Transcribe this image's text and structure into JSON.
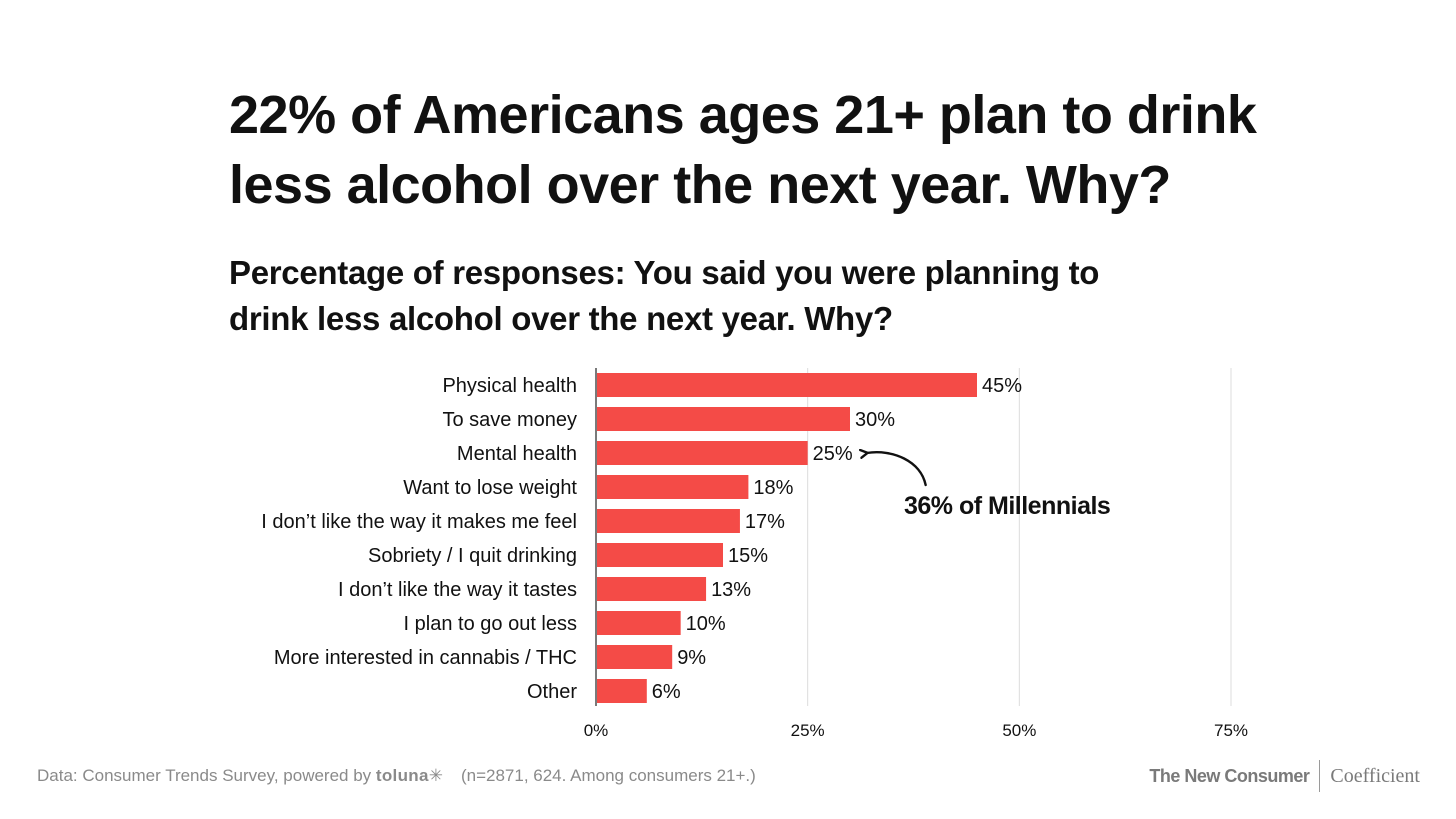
{
  "header": {
    "title_lines": [
      "22% of Americans ages 21+ plan to drink",
      "less alcohol over the next year. Why?"
    ],
    "subtitle_lines": [
      "Percentage of responses: You said you were planning to",
      "drink less alcohol over the next year. Why?"
    ]
  },
  "chart_data": {
    "type": "bar",
    "orientation": "horizontal",
    "categories": [
      "Physical health",
      "To save money",
      "Mental health",
      "Want to lose weight",
      "I don’t like the way it makes me feel",
      "Sobriety / I quit drinking",
      "I don’t like the way it tastes",
      "I plan to go out less",
      "More interested in cannabis / THC",
      "Other"
    ],
    "values": [
      45,
      30,
      25,
      18,
      17,
      15,
      13,
      10,
      9,
      6
    ],
    "value_labels": [
      "45%",
      "30%",
      "25%",
      "18%",
      "17%",
      "15%",
      "13%",
      "10%",
      "9%",
      "6%"
    ],
    "xlim": [
      0,
      75
    ],
    "x_ticks": [
      0,
      25,
      50,
      75
    ],
    "x_tick_labels": [
      "0%",
      "25%",
      "50%",
      "75%"
    ],
    "grid": "vertical",
    "bar_color": "#f44b47",
    "annotation": {
      "text": "36% of Millennials",
      "target_category": "Mental health"
    }
  },
  "footer": {
    "source_prefix": "Data: Consumer Trends Survey, powered by ",
    "source_brand": "toluna",
    "source_brand_mark": "✳",
    "source_note": "(n=2871, 624. Among consumers 21+.)",
    "logo_left": "The New Consumer",
    "logo_right": "Coefficient"
  }
}
